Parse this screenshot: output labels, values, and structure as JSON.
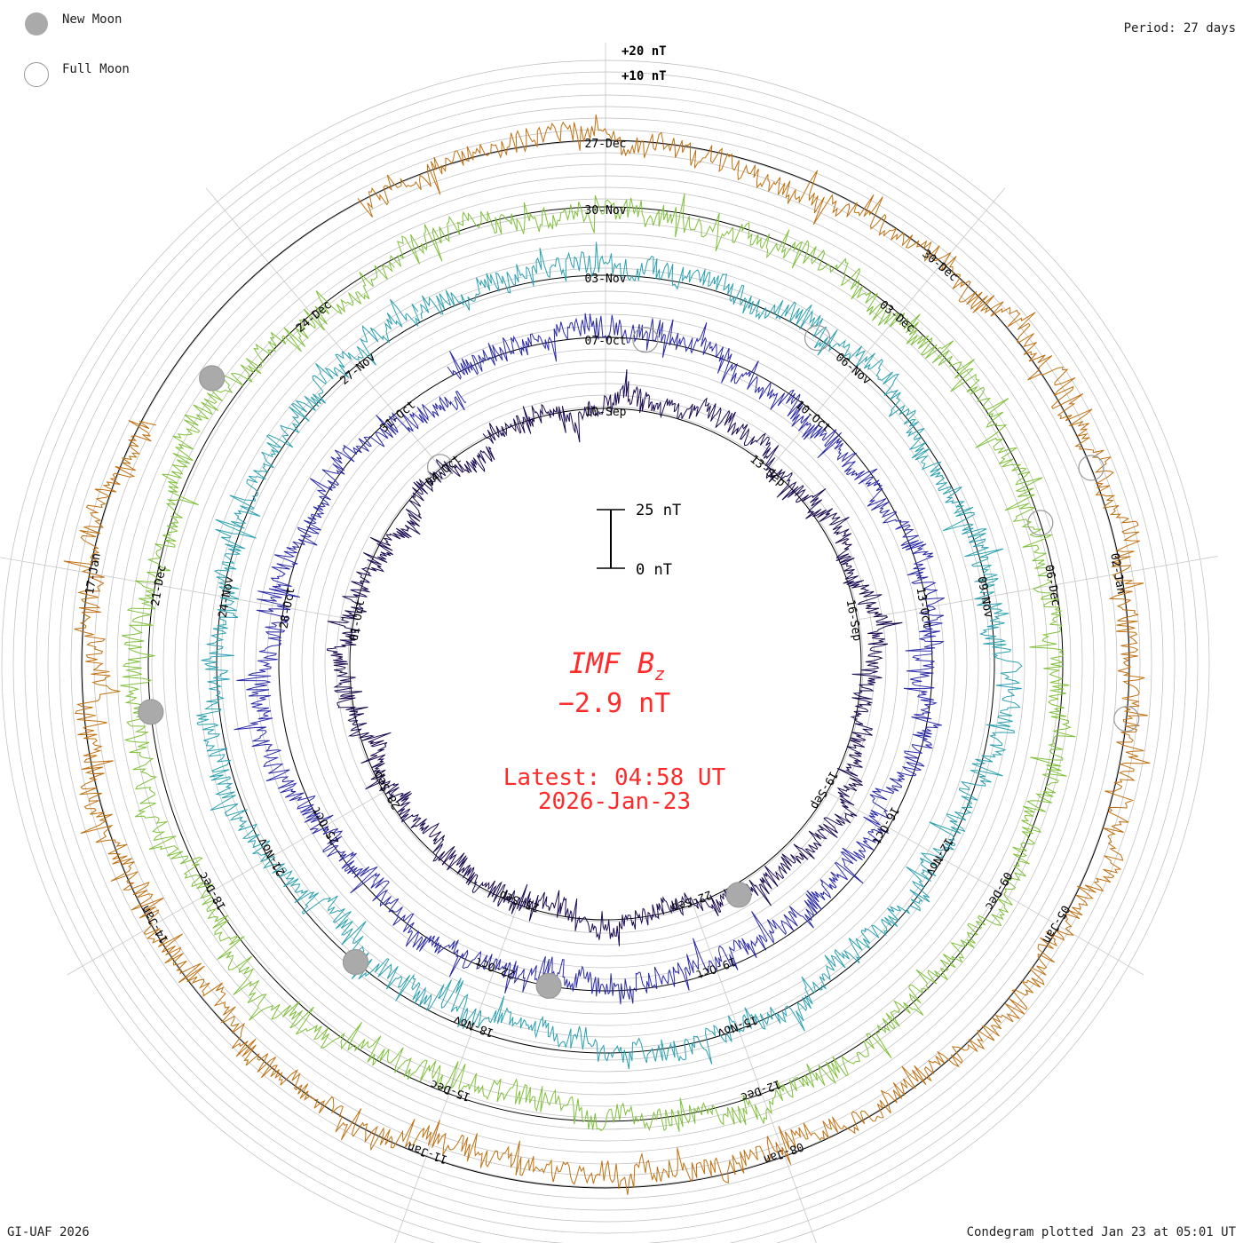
{
  "header": {
    "period": "Period: 27 days",
    "credit": "GI-UAF 2026",
    "plotted": "Condegram plotted Jan 23 at 05:01 UT"
  },
  "legend": {
    "new_moon": "New Moon",
    "full_moon": "Full Moon"
  },
  "center": {
    "title": "IMF B",
    "subscript": "z",
    "value": "−2.9 nT",
    "latest": "Latest: 04:58 UT",
    "date": "2026-Jan-23"
  },
  "scale_bar": {
    "top_label": "25 nT",
    "bottom_label": "0 nT"
  },
  "colors": {
    "moon_fill": "#aaaaaa",
    "moon_stroke": "#999999",
    "grid": "#bbbbbb",
    "center_text": "#ff2a2a"
  },
  "chart_data": {
    "type": "line",
    "title": "IMF Bz condegram",
    "period_days": 27,
    "units": "nT",
    "ring_labels": [
      "+20 nT",
      "+10 nT"
    ],
    "turns": [
      {
        "color": "#1a0a50",
        "dates": [
          "10-Sep",
          "13-Sep",
          "16-Sep",
          "19-Sep",
          "22-Sep",
          "25-Sep",
          "28-Sep",
          "01-Oct",
          "04-Oct"
        ]
      },
      {
        "color": "#2a2aa8",
        "dates": [
          "07-Oct",
          "10-Oct",
          "13-Oct",
          "16-Oct",
          "19-Oct",
          "22-Oct",
          "25-Oct",
          "28-Oct",
          "31-Oct"
        ]
      },
      {
        "color": "#2aa0b0",
        "dates": [
          "03-Nov",
          "06-Nov",
          "09-Nov",
          "12-Nov",
          "15-Nov",
          "18-Nov",
          "21-Nov",
          "24-Nov",
          "27-Nov"
        ]
      },
      {
        "color": "#7fc03a",
        "dates": [
          "30-Nov",
          "03-Dec",
          "06-Dec",
          "09-Dec",
          "12-Dec",
          "15-Dec",
          "18-Dec",
          "21-Dec",
          "24-Dec"
        ]
      },
      {
        "color": "#c07010",
        "dates": [
          "27-Dec",
          "30-Dec",
          "02-Jan",
          "05-Jan",
          "08-Jan",
          "11-Jan",
          "14-Jan",
          "17-Jan"
        ]
      }
    ]
  }
}
